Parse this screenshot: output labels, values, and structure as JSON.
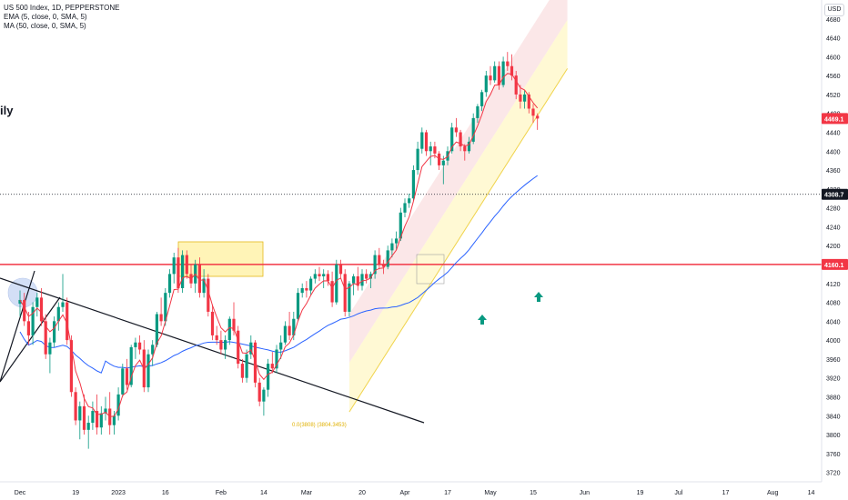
{
  "header": {
    "symbol_line": "US 500 Index, 1D, PEPPERSTONE",
    "indicator_ema": "EMA (5, close, 0, SMA, 5)",
    "indicator_ma": "MA (50, close, 0, SMA, 5)",
    "partial_title": "ily",
    "currency": "USD"
  },
  "colors": {
    "up": "#089981",
    "down": "#f23645",
    "ema": "#f23645",
    "ma": "#2962ff",
    "resistance": "#f23645",
    "channel_upper_fill": "#f8d3d6",
    "channel_lower_fill": "#fff6c2",
    "channel_line": "#f0d34a",
    "trendline": "#131722",
    "arrow": "#089981"
  },
  "chart_data": {
    "type": "candlestick",
    "yrange": [
      3700,
      4720
    ],
    "y_ticks": [
      3720,
      3760,
      3800,
      3840,
      3880,
      3920,
      3960,
      4000,
      4040,
      4080,
      4120,
      4160,
      4200,
      4240,
      4280,
      4320,
      4360,
      4400,
      4440,
      4480,
      4520,
      4560,
      4600,
      4640,
      4680
    ],
    "x_ticks": [
      {
        "label": "Dec",
        "day": 0
      },
      {
        "label": "19",
        "day": 13
      },
      {
        "label": "2023",
        "day": 23
      },
      {
        "label": "16",
        "day": 34
      },
      {
        "label": "Feb",
        "day": 47
      },
      {
        "label": "14",
        "day": 57
      },
      {
        "label": "Mar",
        "day": 67
      },
      {
        "label": "20",
        "day": 80
      },
      {
        "label": "Apr",
        "day": 90
      },
      {
        "label": "17",
        "day": 100
      },
      {
        "label": "May",
        "day": 110
      },
      {
        "label": "15",
        "day": 120
      },
      {
        "label": "Jun",
        "day": 132
      },
      {
        "label": "19",
        "day": 145
      },
      {
        "label": "Jul",
        "day": 154
      },
      {
        "label": "17",
        "day": 165
      },
      {
        "label": "Aug",
        "day": 176
      },
      {
        "label": "14",
        "day": 185
      }
    ],
    "price_labels": [
      {
        "value": 4469.1,
        "text": "4469.1",
        "kind": "last"
      },
      {
        "value": 4308.7,
        "text": "4308.7",
        "kind": "crosshair"
      },
      {
        "value": 4160.1,
        "text": "4160.1",
        "kind": "resistance"
      }
    ],
    "resistance_level": 4160.1,
    "crosshair_level": 4308.7,
    "fib_label": "0.0(3808) (3804.3453)",
    "candles": [
      [
        4077,
        4105,
        4050,
        4085
      ],
      [
        4085,
        4100,
        4030,
        4040
      ],
      [
        4040,
        4060,
        3990,
        4010
      ],
      [
        4010,
        4080,
        3990,
        4070
      ],
      [
        4070,
        4100,
        4050,
        4090
      ],
      [
        4090,
        4110,
        4030,
        4040
      ],
      [
        4040,
        4055,
        3960,
        3970
      ],
      [
        3970,
        4005,
        3930,
        3995
      ],
      [
        3995,
        4050,
        3985,
        4040
      ],
      [
        4040,
        4080,
        4020,
        4070
      ],
      [
        4070,
        4140,
        4060,
        4080
      ],
      [
        4080,
        4090,
        3990,
        4000
      ],
      [
        4000,
        4010,
        3880,
        3890
      ],
      [
        3890,
        3900,
        3820,
        3830
      ],
      [
        3830,
        3870,
        3790,
        3860
      ],
      [
        3860,
        3885,
        3800,
        3810
      ],
      [
        3810,
        3840,
        3770,
        3825
      ],
      [
        3825,
        3870,
        3810,
        3850
      ],
      [
        3850,
        3885,
        3800,
        3815
      ],
      [
        3815,
        3860,
        3800,
        3845
      ],
      [
        3845,
        3880,
        3830,
        3855
      ],
      [
        3855,
        3890,
        3800,
        3820
      ],
      [
        3820,
        3850,
        3800,
        3840
      ],
      [
        3840,
        3900,
        3830,
        3885
      ],
      [
        3885,
        3950,
        3880,
        3940
      ],
      [
        3940,
        3960,
        3895,
        3905
      ],
      [
        3905,
        3990,
        3900,
        3985
      ],
      [
        3985,
        4005,
        3960,
        3995
      ],
      [
        3995,
        4010,
        3970,
        3980
      ],
      [
        3980,
        4000,
        3890,
        3900
      ],
      [
        3900,
        3980,
        3890,
        3970
      ],
      [
        3970,
        4000,
        3945,
        3990
      ],
      [
        3990,
        4060,
        3985,
        4055
      ],
      [
        4055,
        4090,
        4030,
        4040
      ],
      [
        4040,
        4110,
        4030,
        4100
      ],
      [
        4100,
        4150,
        4090,
        4140
      ],
      [
        4140,
        4185,
        4120,
        4175
      ],
      [
        4175,
        4195,
        4100,
        4110
      ],
      [
        4110,
        4190,
        4100,
        4180
      ],
      [
        4180,
        4190,
        4130,
        4140
      ],
      [
        4140,
        4160,
        4110,
        4120
      ],
      [
        4120,
        4170,
        4100,
        4160
      ],
      [
        4160,
        4175,
        4090,
        4100
      ],
      [
        4100,
        4150,
        4090,
        4130
      ],
      [
        4130,
        4140,
        4050,
        4060
      ],
      [
        4060,
        4075,
        4000,
        4010
      ],
      [
        4010,
        4030,
        3990,
        4000
      ],
      [
        4000,
        4020,
        3970,
        3980
      ],
      [
        3980,
        4010,
        3960,
        4000
      ],
      [
        4000,
        4050,
        3990,
        4045
      ],
      [
        4045,
        4080,
        4010,
        4020
      ],
      [
        4020,
        4030,
        3940,
        3950
      ],
      [
        3950,
        3960,
        3910,
        3920
      ],
      [
        3920,
        3980,
        3910,
        3970
      ],
      [
        3970,
        4010,
        3960,
        3995
      ],
      [
        3995,
        4000,
        3900,
        3910
      ],
      [
        3910,
        3920,
        3860,
        3870
      ],
      [
        3870,
        3900,
        3840,
        3895
      ],
      [
        3895,
        3960,
        3880,
        3950
      ],
      [
        3950,
        3975,
        3930,
        3940
      ],
      [
        3940,
        3990,
        3930,
        3980
      ],
      [
        3980,
        4010,
        3960,
        3995
      ],
      [
        3995,
        4040,
        3990,
        4030
      ],
      [
        4030,
        4060,
        4000,
        4010
      ],
      [
        4010,
        4060,
        4000,
        4045
      ],
      [
        4045,
        4110,
        4040,
        4100
      ],
      [
        4100,
        4120,
        4090,
        4110
      ],
      [
        4110,
        4125,
        4090,
        4105
      ],
      [
        4105,
        4135,
        4095,
        4130
      ],
      [
        4130,
        4150,
        4120,
        4140
      ],
      [
        4140,
        4155,
        4125,
        4135
      ],
      [
        4135,
        4150,
        4110,
        4140
      ],
      [
        4140,
        4148,
        4115,
        4125
      ],
      [
        4125,
        4145,
        4070,
        4080
      ],
      [
        4080,
        4170,
        4075,
        4160
      ],
      [
        4160,
        4170,
        4130,
        4140
      ],
      [
        4140,
        4150,
        4050,
        4060
      ],
      [
        4060,
        4125,
        4050,
        4120
      ],
      [
        4120,
        4140,
        4095,
        4135
      ],
      [
        4135,
        4155,
        4105,
        4115
      ],
      [
        4115,
        4150,
        4105,
        4140
      ],
      [
        4140,
        4150,
        4120,
        4130
      ],
      [
        4130,
        4145,
        4110,
        4140
      ],
      [
        4140,
        4190,
        4130,
        4180
      ],
      [
        4180,
        4195,
        4150,
        4160
      ],
      [
        4160,
        4170,
        4140,
        4155
      ],
      [
        4155,
        4200,
        4150,
        4190
      ],
      [
        4190,
        4215,
        4175,
        4205
      ],
      [
        4205,
        4230,
        4190,
        4215
      ],
      [
        4215,
        4280,
        4210,
        4270
      ],
      [
        4270,
        4300,
        4260,
        4290
      ],
      [
        4290,
        4310,
        4280,
        4300
      ],
      [
        4300,
        4370,
        4295,
        4360
      ],
      [
        4360,
        4420,
        4350,
        4405
      ],
      [
        4405,
        4450,
        4395,
        4440
      ],
      [
        4440,
        4445,
        4390,
        4400
      ],
      [
        4400,
        4420,
        4370,
        4410
      ],
      [
        4410,
        4420,
        4385,
        4395
      ],
      [
        4395,
        4400,
        4360,
        4370
      ],
      [
        4370,
        4390,
        4330,
        4380
      ],
      [
        4380,
        4410,
        4370,
        4400
      ],
      [
        4400,
        4460,
        4395,
        4450
      ],
      [
        4450,
        4470,
        4430,
        4440
      ],
      [
        4440,
        4445,
        4400,
        4410
      ],
      [
        4410,
        4415,
        4380,
        4400
      ],
      [
        4400,
        4430,
        4395,
        4420
      ],
      [
        4420,
        4480,
        4415,
        4470
      ],
      [
        4470,
        4500,
        4460,
        4495
      ],
      [
        4495,
        4530,
        4485,
        4525
      ],
      [
        4525,
        4570,
        4515,
        4560
      ],
      [
        4560,
        4580,
        4540,
        4550
      ],
      [
        4550,
        4590,
        4545,
        4580
      ],
      [
        4580,
        4590,
        4530,
        4540
      ],
      [
        4540,
        4600,
        4535,
        4590
      ],
      [
        4590,
        4610,
        4570,
        4580
      ],
      [
        4580,
        4605,
        4550,
        4560
      ],
      [
        4560,
        4570,
        4510,
        4520
      ],
      [
        4520,
        4540,
        4490,
        4505
      ],
      [
        4505,
        4530,
        4490,
        4520
      ],
      [
        4520,
        4525,
        4480,
        4490
      ],
      [
        4490,
        4500,
        4460,
        4475
      ],
      [
        4475,
        4480,
        4445,
        4469
      ]
    ]
  }
}
